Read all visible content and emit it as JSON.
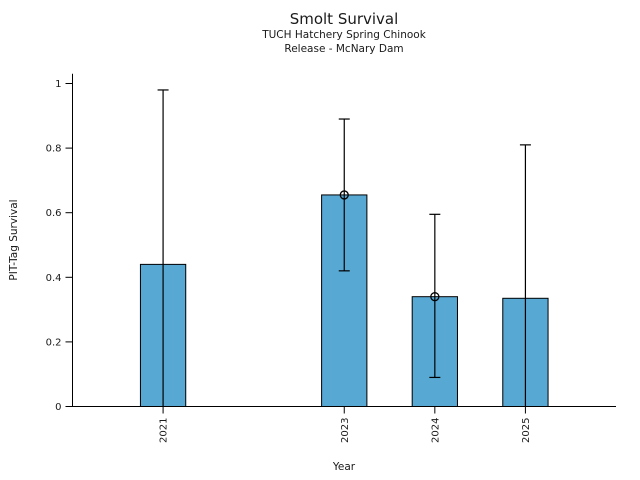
{
  "header": {
    "title": "Smolt Survival",
    "subtitle1": "TUCH Hatchery Spring Chinook",
    "subtitle2": "Release - McNary Dam"
  },
  "chart_data": {
    "type": "bar",
    "title": "Smolt Survival",
    "subtitle1": "TUCH Hatchery Spring Chinook",
    "subtitle2": "Release - McNary Dam",
    "xlabel": "Year",
    "ylabel": "PIT-Tag Survival",
    "x": [
      2021,
      2023,
      2024,
      2025
    ],
    "xtick_labels": [
      "2021",
      "2023",
      "2024",
      "2025"
    ],
    "values": [
      0.44,
      0.655,
      0.34,
      0.335
    ],
    "error_low": [
      0.0,
      0.42,
      0.09,
      0.0
    ],
    "error_high": [
      0.98,
      0.89,
      0.595,
      0.81
    ],
    "error_low_cap_visible": [
      false,
      true,
      true,
      false
    ],
    "point_markers": [
      false,
      true,
      true,
      false
    ],
    "xlim": [
      2020,
      2026
    ],
    "ylim": [
      0,
      1.03
    ],
    "yticks": [
      0,
      0.2,
      0.4,
      0.6,
      0.8,
      1
    ],
    "ytick_labels": [
      "0",
      "0.2",
      "0.4",
      "0.6",
      "0.8",
      "1"
    ],
    "bar_width_years": 0.5,
    "bar_color": "#57A8D3",
    "bar_edge_color": "#000000",
    "errorbar_color": "#000000",
    "grid": false,
    "legend": "none"
  }
}
